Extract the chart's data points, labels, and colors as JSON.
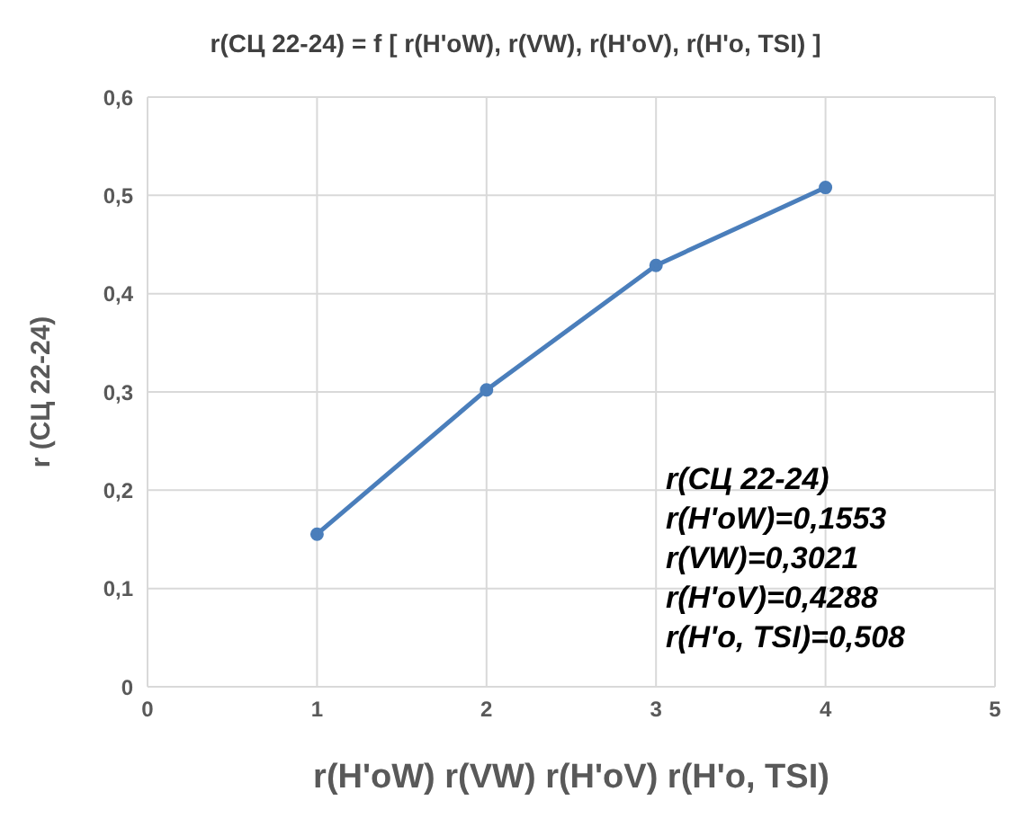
{
  "chart_data": {
    "type": "line",
    "title": "r(СЦ 22-24) = f [ r(H'oW), r(VW),  r(H'oV),  r(H'o, TSI) ]",
    "xlabel": "r(H'oW)     r(VW)  r(H'oV) r(H'o, TSI)",
    "ylabel": "r (СЦ 22-24)",
    "x": [
      1,
      2,
      3,
      4
    ],
    "series": [
      {
        "color": "#4a7ebb",
        "values": [
          0.1553,
          0.3021,
          0.4288,
          0.508
        ]
      }
    ],
    "xlim": [
      0,
      5
    ],
    "xticks": [
      0,
      1,
      2,
      3,
      4,
      5
    ],
    "ylim": [
      0,
      0.6
    ],
    "yticks": [
      0,
      {
        "value": 0.1,
        "label": "0,1"
      },
      {
        "value": 0.2,
        "label": "0,2"
      },
      {
        "value": 0.3,
        "label": "0,3"
      },
      {
        "value": 0.4,
        "label": "0,4"
      },
      {
        "value": 0.5,
        "label": "0,5"
      },
      {
        "value": 0.6,
        "label": "0,6"
      }
    ],
    "grid": true,
    "marker": "circle",
    "line_style": "solid",
    "annotations": [
      "r(СЦ 22-24)",
      "r(H'oW)=0,1553",
      "r(VW)=0,3021",
      "r(H'oV)=0,4288",
      "r(H'o, TSI)=0,508"
    ]
  }
}
